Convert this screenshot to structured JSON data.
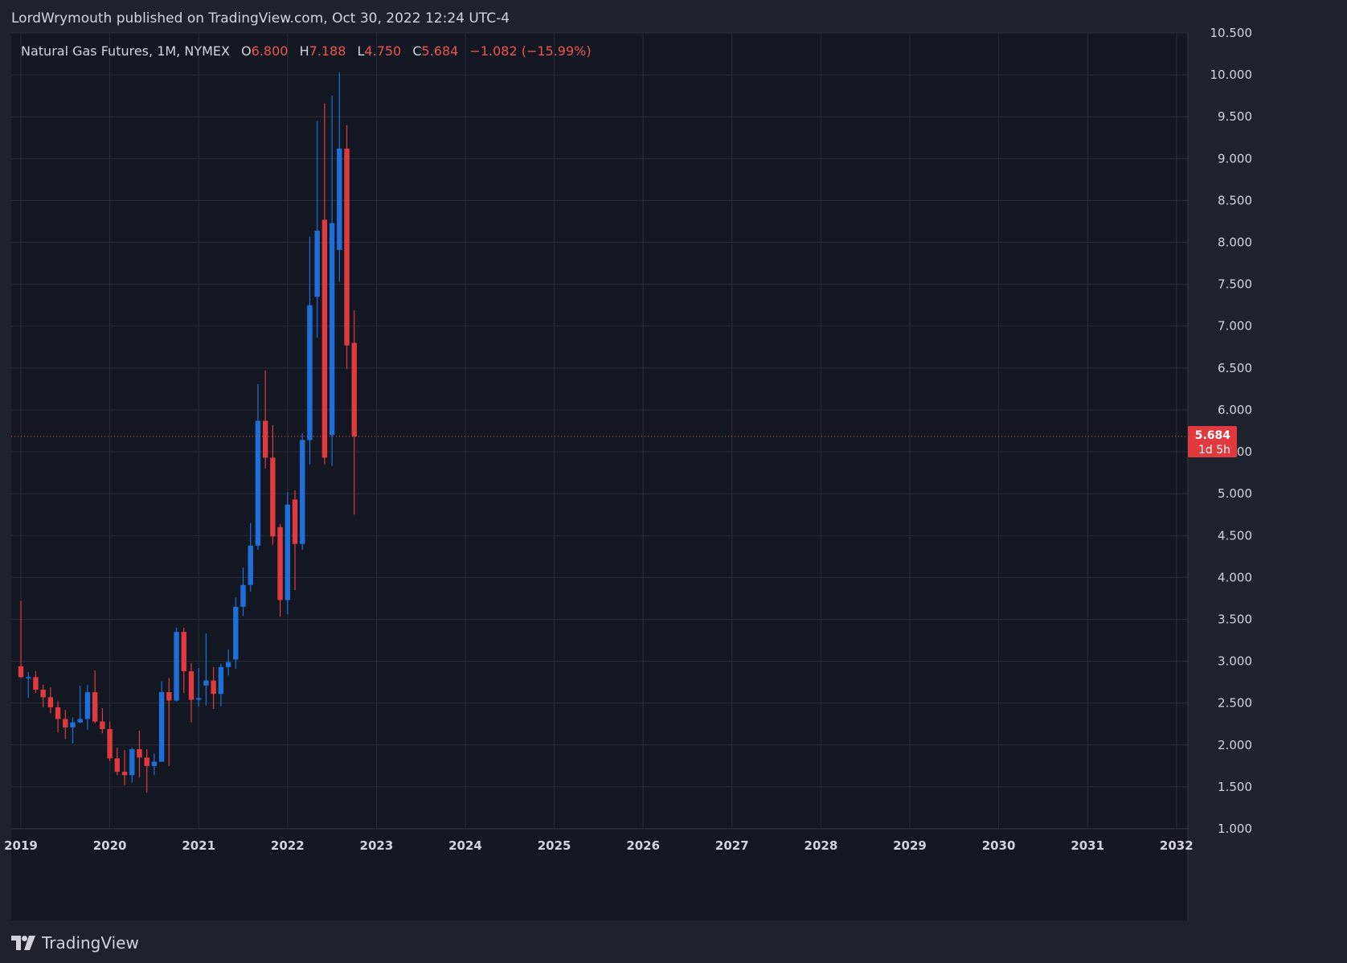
{
  "header": {
    "published_line": "LordWrymouth published on TradingView.com, Oct 30, 2022 12:24 UTC-4"
  },
  "legend": {
    "symbol": "Natural Gas Futures, 1M, NYMEX",
    "open_label": "O",
    "open_value": "6.800",
    "high_label": "H",
    "high_value": "7.188",
    "low_label": "L",
    "low_value": "4.750",
    "close_label": "C",
    "close_value": "5.684",
    "change": "−1.082 (−15.99%)"
  },
  "price_badge": {
    "price": "5.684",
    "countdown": "1d 5h"
  },
  "footer": {
    "brand": "TradingView",
    "logo_icon": "tradingview-logo-icon"
  },
  "colors": {
    "background": "#131722",
    "frame": "#1e222d",
    "grid": "#2a2e39",
    "up": "#2962ff",
    "up_candle": "#1e6fd9",
    "down": "#ef5350",
    "down_candle": "#e03a3e",
    "text": "#d1d4dc"
  },
  "chart_data": {
    "type": "candlestick",
    "title": "",
    "interval": "1M",
    "ylim": [
      1.0,
      10.5
    ],
    "y_ticks": [
      "1.000",
      "1.500",
      "2.000",
      "2.500",
      "3.000",
      "3.500",
      "4.000",
      "4.500",
      "5.000",
      "5.500",
      "6.000",
      "6.500",
      "7.000",
      "7.500",
      "8.000",
      "8.500",
      "9.000",
      "9.500",
      "10.000",
      "10.500"
    ],
    "x_ticks": [
      "2019",
      "2020",
      "2021",
      "2022",
      "2023",
      "2024",
      "2025",
      "2026",
      "2027",
      "2028",
      "2029",
      "2030",
      "2031",
      "2032"
    ],
    "last_price": 5.684,
    "candles": [
      {
        "t": "2019-01",
        "o": 2.94,
        "h": 3.72,
        "l": 2.8,
        "c": 2.81
      },
      {
        "t": "2019-02",
        "o": 2.81,
        "h": 2.87,
        "l": 2.56,
        "c": 2.81
      },
      {
        "t": "2019-03",
        "o": 2.81,
        "h": 2.88,
        "l": 2.62,
        "c": 2.66
      },
      {
        "t": "2019-04",
        "o": 2.66,
        "h": 2.72,
        "l": 2.45,
        "c": 2.57
      },
      {
        "t": "2019-05",
        "o": 2.57,
        "h": 2.69,
        "l": 2.38,
        "c": 2.45
      },
      {
        "t": "2019-06",
        "o": 2.45,
        "h": 2.52,
        "l": 2.15,
        "c": 2.31
      },
      {
        "t": "2019-07",
        "o": 2.31,
        "h": 2.42,
        "l": 2.07,
        "c": 2.21
      },
      {
        "t": "2019-08",
        "o": 2.21,
        "h": 2.33,
        "l": 2.02,
        "c": 2.27
      },
      {
        "t": "2019-09",
        "o": 2.27,
        "h": 2.71,
        "l": 2.26,
        "c": 2.31
      },
      {
        "t": "2019-10",
        "o": 2.31,
        "h": 2.72,
        "l": 2.18,
        "c": 2.63
      },
      {
        "t": "2019-11",
        "o": 2.63,
        "h": 2.89,
        "l": 2.26,
        "c": 2.28
      },
      {
        "t": "2019-12",
        "o": 2.28,
        "h": 2.44,
        "l": 2.14,
        "c": 2.19
      },
      {
        "t": "2020-01",
        "o": 2.19,
        "h": 2.28,
        "l": 1.81,
        "c": 1.84
      },
      {
        "t": "2020-02",
        "o": 1.84,
        "h": 1.97,
        "l": 1.64,
        "c": 1.68
      },
      {
        "t": "2020-03",
        "o": 1.68,
        "h": 1.94,
        "l": 1.52,
        "c": 1.64
      },
      {
        "t": "2020-04",
        "o": 1.64,
        "h": 1.97,
        "l": 1.55,
        "c": 1.95
      },
      {
        "t": "2020-05",
        "o": 1.95,
        "h": 2.17,
        "l": 1.61,
        "c": 1.85
      },
      {
        "t": "2020-06",
        "o": 1.85,
        "h": 1.95,
        "l": 1.43,
        "c": 1.75
      },
      {
        "t": "2020-07",
        "o": 1.75,
        "h": 1.9,
        "l": 1.64,
        "c": 1.8
      },
      {
        "t": "2020-08",
        "o": 1.8,
        "h": 2.76,
        "l": 1.8,
        "c": 2.63
      },
      {
        "t": "2020-09",
        "o": 2.63,
        "h": 2.8,
        "l": 1.75,
        "c": 2.53
      },
      {
        "t": "2020-10",
        "o": 2.53,
        "h": 3.4,
        "l": 2.52,
        "c": 3.35
      },
      {
        "t": "2020-11",
        "o": 3.35,
        "h": 3.4,
        "l": 2.62,
        "c": 2.88
      },
      {
        "t": "2020-12",
        "o": 2.88,
        "h": 2.98,
        "l": 2.27,
        "c": 2.54
      },
      {
        "t": "2021-01",
        "o": 2.54,
        "h": 2.92,
        "l": 2.46,
        "c": 2.56
      },
      {
        "t": "2021-02",
        "o": 2.71,
        "h": 3.33,
        "l": 2.47,
        "c": 2.77
      },
      {
        "t": "2021-03",
        "o": 2.77,
        "h": 2.93,
        "l": 2.43,
        "c": 2.61
      },
      {
        "t": "2021-04",
        "o": 2.61,
        "h": 2.97,
        "l": 2.46,
        "c": 2.93
      },
      {
        "t": "2021-05",
        "o": 2.93,
        "h": 3.14,
        "l": 2.83,
        "c": 2.99
      },
      {
        "t": "2021-06",
        "o": 3.02,
        "h": 3.76,
        "l": 2.91,
        "c": 3.65
      },
      {
        "t": "2021-07",
        "o": 3.65,
        "h": 4.12,
        "l": 3.54,
        "c": 3.91
      },
      {
        "t": "2021-08",
        "o": 3.91,
        "h": 4.65,
        "l": 3.83,
        "c": 4.38
      },
      {
        "t": "2021-09",
        "o": 4.38,
        "h": 6.31,
        "l": 4.33,
        "c": 5.87
      },
      {
        "t": "2021-10",
        "o": 5.87,
        "h": 6.47,
        "l": 5.3,
        "c": 5.43
      },
      {
        "t": "2021-11",
        "o": 5.43,
        "h": 5.82,
        "l": 4.39,
        "c": 4.49
      },
      {
        "t": "2021-12",
        "o": 4.6,
        "h": 4.64,
        "l": 3.53,
        "c": 3.73
      },
      {
        "t": "2022-01",
        "o": 3.73,
        "h": 5.02,
        "l": 3.56,
        "c": 4.87
      },
      {
        "t": "2022-02",
        "o": 4.93,
        "h": 5.04,
        "l": 3.85,
        "c": 4.4
      },
      {
        "t": "2022-03",
        "o": 4.4,
        "h": 5.72,
        "l": 4.33,
        "c": 5.64
      },
      {
        "t": "2022-04",
        "o": 5.64,
        "h": 8.07,
        "l": 5.35,
        "c": 7.25
      },
      {
        "t": "2022-05",
        "o": 7.35,
        "h": 9.45,
        "l": 6.86,
        "c": 8.14
      },
      {
        "t": "2022-06",
        "o": 8.27,
        "h": 9.66,
        "l": 5.35,
        "c": 5.43
      },
      {
        "t": "2022-07",
        "o": 5.7,
        "h": 9.75,
        "l": 5.33,
        "c": 8.23
      },
      {
        "t": "2022-08",
        "o": 7.91,
        "h": 10.03,
        "l": 7.53,
        "c": 9.12
      },
      {
        "t": "2022-09",
        "o": 9.12,
        "h": 9.4,
        "l": 6.49,
        "c": 6.77
      },
      {
        "t": "2022-10",
        "o": 6.8,
        "h": 7.188,
        "l": 4.75,
        "c": 5.684
      }
    ]
  }
}
